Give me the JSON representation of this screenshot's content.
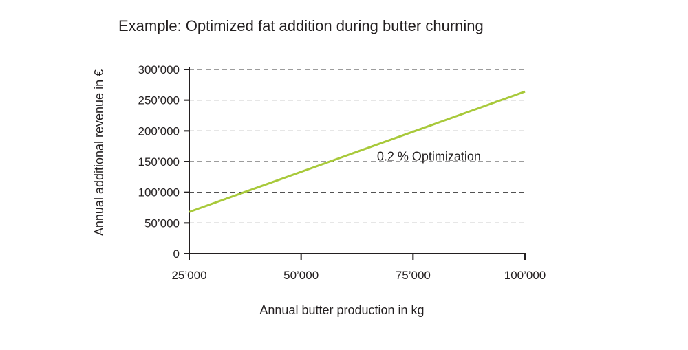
{
  "chart_data": {
    "type": "line",
    "title": "Example: Optimized fat addition during butter churning",
    "xlabel": "Annual butter production in kg",
    "ylabel": "Annual additional revenue in €",
    "x_ticks": [
      {
        "value": 25000,
        "label": "25’000"
      },
      {
        "value": 50000,
        "label": "50’000"
      },
      {
        "value": 75000,
        "label": "75’000"
      },
      {
        "value": 100000,
        "label": "100’000"
      }
    ],
    "y_ticks": [
      {
        "value": 0,
        "label": "0"
      },
      {
        "value": 50000,
        "label": "50’000"
      },
      {
        "value": 100000,
        "label": "100’000"
      },
      {
        "value": 150000,
        "label": "150’000"
      },
      {
        "value": 200000,
        "label": "200’000"
      },
      {
        "value": 250000,
        "label": "250’000"
      },
      {
        "value": 300000,
        "label": "300’000"
      }
    ],
    "xlim": [
      25000,
      100000
    ],
    "ylim": [
      0,
      300000
    ],
    "grid": "horizontal dashed",
    "series": [
      {
        "color": "#a8c93a",
        "x": [
          25000,
          100000
        ],
        "y": [
          68000,
          264000
        ]
      }
    ],
    "annotations": [
      {
        "text": "0.2 % Optimization",
        "x": 78000,
        "y": 125000
      }
    ]
  }
}
